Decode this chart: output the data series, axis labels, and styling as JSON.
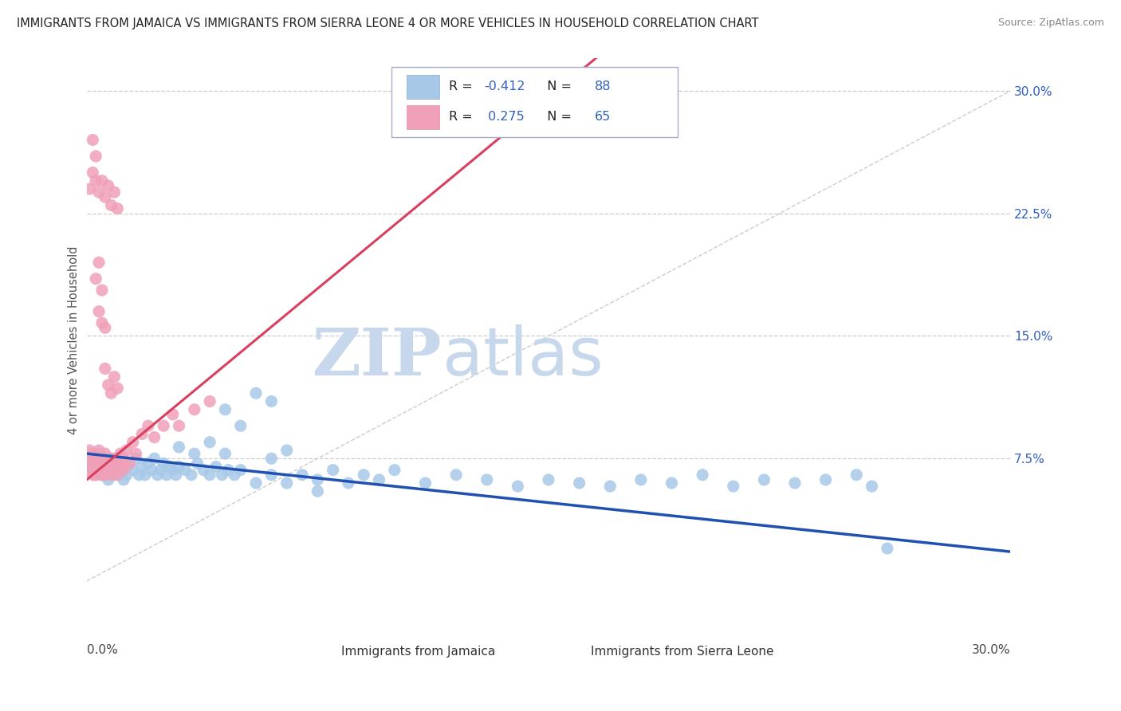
{
  "title": "IMMIGRANTS FROM JAMAICA VS IMMIGRANTS FROM SIERRA LEONE 4 OR MORE VEHICLES IN HOUSEHOLD CORRELATION CHART",
  "source": "Source: ZipAtlas.com",
  "ylabel": "4 or more Vehicles in Household",
  "right_ytick_vals": [
    0.075,
    0.15,
    0.225,
    0.3
  ],
  "right_ytick_labels": [
    "7.5%",
    "15.0%",
    "22.5%",
    "30.0%"
  ],
  "xmin": 0.0,
  "xmax": 0.3,
  "ymin": -0.025,
  "ymax": 0.32,
  "R_jamaica": -0.412,
  "N_jamaica": 88,
  "R_sierraleone": 0.275,
  "N_sierraleone": 65,
  "color_jamaica": "#a8c8e8",
  "color_sierraleone": "#f0a0b8",
  "trendline_jamaica": "#2050b0",
  "trendline_sierraleone": "#d84060",
  "watermark_ZIP": "ZIP",
  "watermark_atlas": "atlas",
  "watermark_color": "#c8d8ec",
  "legend_label_jamaica": "Immigrants from Jamaica",
  "legend_label_sierraleone": "Immigrants from Sierra Leone",
  "legend_text_color": "#3060c0",
  "jamaica_points": [
    [
      0.001,
      0.072
    ],
    [
      0.002,
      0.068
    ],
    [
      0.003,
      0.075
    ],
    [
      0.003,
      0.065
    ],
    [
      0.004,
      0.07
    ],
    [
      0.004,
      0.078
    ],
    [
      0.005,
      0.065
    ],
    [
      0.005,
      0.073
    ],
    [
      0.006,
      0.068
    ],
    [
      0.006,
      0.075
    ],
    [
      0.007,
      0.07
    ],
    [
      0.007,
      0.062
    ],
    [
      0.008,
      0.068
    ],
    [
      0.008,
      0.075
    ],
    [
      0.009,
      0.065
    ],
    [
      0.009,
      0.072
    ],
    [
      0.01,
      0.068
    ],
    [
      0.01,
      0.075
    ],
    [
      0.011,
      0.065
    ],
    [
      0.011,
      0.073
    ],
    [
      0.012,
      0.068
    ],
    [
      0.012,
      0.062
    ],
    [
      0.013,
      0.07
    ],
    [
      0.013,
      0.065
    ],
    [
      0.014,
      0.072
    ],
    [
      0.015,
      0.068
    ],
    [
      0.016,
      0.075
    ],
    [
      0.017,
      0.065
    ],
    [
      0.018,
      0.07
    ],
    [
      0.019,
      0.065
    ],
    [
      0.02,
      0.072
    ],
    [
      0.021,
      0.068
    ],
    [
      0.022,
      0.075
    ],
    [
      0.023,
      0.065
    ],
    [
      0.024,
      0.068
    ],
    [
      0.025,
      0.072
    ],
    [
      0.026,
      0.065
    ],
    [
      0.027,
      0.07
    ],
    [
      0.028,
      0.068
    ],
    [
      0.029,
      0.065
    ],
    [
      0.03,
      0.07
    ],
    [
      0.032,
      0.068
    ],
    [
      0.034,
      0.065
    ],
    [
      0.036,
      0.072
    ],
    [
      0.038,
      0.068
    ],
    [
      0.04,
      0.065
    ],
    [
      0.042,
      0.07
    ],
    [
      0.044,
      0.065
    ],
    [
      0.046,
      0.068
    ],
    [
      0.048,
      0.065
    ],
    [
      0.05,
      0.068
    ],
    [
      0.055,
      0.115
    ],
    [
      0.055,
      0.06
    ],
    [
      0.06,
      0.11
    ],
    [
      0.06,
      0.065
    ],
    [
      0.065,
      0.06
    ],
    [
      0.07,
      0.065
    ],
    [
      0.075,
      0.062
    ],
    [
      0.08,
      0.068
    ],
    [
      0.085,
      0.06
    ],
    [
      0.09,
      0.065
    ],
    [
      0.095,
      0.062
    ],
    [
      0.1,
      0.068
    ],
    [
      0.11,
      0.06
    ],
    [
      0.12,
      0.065
    ],
    [
      0.13,
      0.062
    ],
    [
      0.14,
      0.058
    ],
    [
      0.15,
      0.062
    ],
    [
      0.16,
      0.06
    ],
    [
      0.17,
      0.058
    ],
    [
      0.18,
      0.062
    ],
    [
      0.19,
      0.06
    ],
    [
      0.2,
      0.065
    ],
    [
      0.21,
      0.058
    ],
    [
      0.22,
      0.062
    ],
    [
      0.23,
      0.06
    ],
    [
      0.24,
      0.062
    ],
    [
      0.25,
      0.065
    ],
    [
      0.255,
      0.058
    ],
    [
      0.26,
      0.02
    ],
    [
      0.045,
      0.105
    ],
    [
      0.05,
      0.095
    ],
    [
      0.03,
      0.082
    ],
    [
      0.035,
      0.078
    ],
    [
      0.04,
      0.085
    ],
    [
      0.045,
      0.078
    ],
    [
      0.06,
      0.075
    ],
    [
      0.065,
      0.08
    ],
    [
      0.075,
      0.055
    ]
  ],
  "sierraleone_points": [
    [
      0.001,
      0.068
    ],
    [
      0.001,
      0.075
    ],
    [
      0.001,
      0.08
    ],
    [
      0.002,
      0.072
    ],
    [
      0.002,
      0.065
    ],
    [
      0.002,
      0.078
    ],
    [
      0.003,
      0.07
    ],
    [
      0.003,
      0.075
    ],
    [
      0.003,
      0.065
    ],
    [
      0.004,
      0.072
    ],
    [
      0.004,
      0.08
    ],
    [
      0.004,
      0.068
    ],
    [
      0.005,
      0.075
    ],
    [
      0.005,
      0.065
    ],
    [
      0.005,
      0.072
    ],
    [
      0.006,
      0.07
    ],
    [
      0.006,
      0.078
    ],
    [
      0.006,
      0.065
    ],
    [
      0.007,
      0.075
    ],
    [
      0.007,
      0.068
    ],
    [
      0.008,
      0.072
    ],
    [
      0.008,
      0.065
    ],
    [
      0.009,
      0.075
    ],
    [
      0.009,
      0.068
    ],
    [
      0.01,
      0.072
    ],
    [
      0.01,
      0.065
    ],
    [
      0.011,
      0.078
    ],
    [
      0.011,
      0.07
    ],
    [
      0.012,
      0.075
    ],
    [
      0.012,
      0.068
    ],
    [
      0.013,
      0.08
    ],
    [
      0.014,
      0.072
    ],
    [
      0.015,
      0.085
    ],
    [
      0.016,
      0.078
    ],
    [
      0.018,
      0.09
    ],
    [
      0.02,
      0.095
    ],
    [
      0.022,
      0.088
    ],
    [
      0.025,
      0.095
    ],
    [
      0.028,
      0.102
    ],
    [
      0.03,
      0.095
    ],
    [
      0.035,
      0.105
    ],
    [
      0.04,
      0.11
    ],
    [
      0.006,
      0.13
    ],
    [
      0.007,
      0.12
    ],
    [
      0.008,
      0.115
    ],
    [
      0.009,
      0.125
    ],
    [
      0.01,
      0.118
    ],
    [
      0.004,
      0.165
    ],
    [
      0.005,
      0.158
    ],
    [
      0.006,
      0.155
    ],
    [
      0.003,
      0.185
    ],
    [
      0.004,
      0.195
    ],
    [
      0.005,
      0.178
    ],
    [
      0.002,
      0.27
    ],
    [
      0.003,
      0.26
    ],
    [
      0.001,
      0.24
    ],
    [
      0.002,
      0.25
    ],
    [
      0.003,
      0.245
    ],
    [
      0.004,
      0.238
    ],
    [
      0.005,
      0.245
    ],
    [
      0.006,
      0.235
    ],
    [
      0.007,
      0.242
    ],
    [
      0.008,
      0.23
    ],
    [
      0.009,
      0.238
    ],
    [
      0.01,
      0.228
    ]
  ]
}
